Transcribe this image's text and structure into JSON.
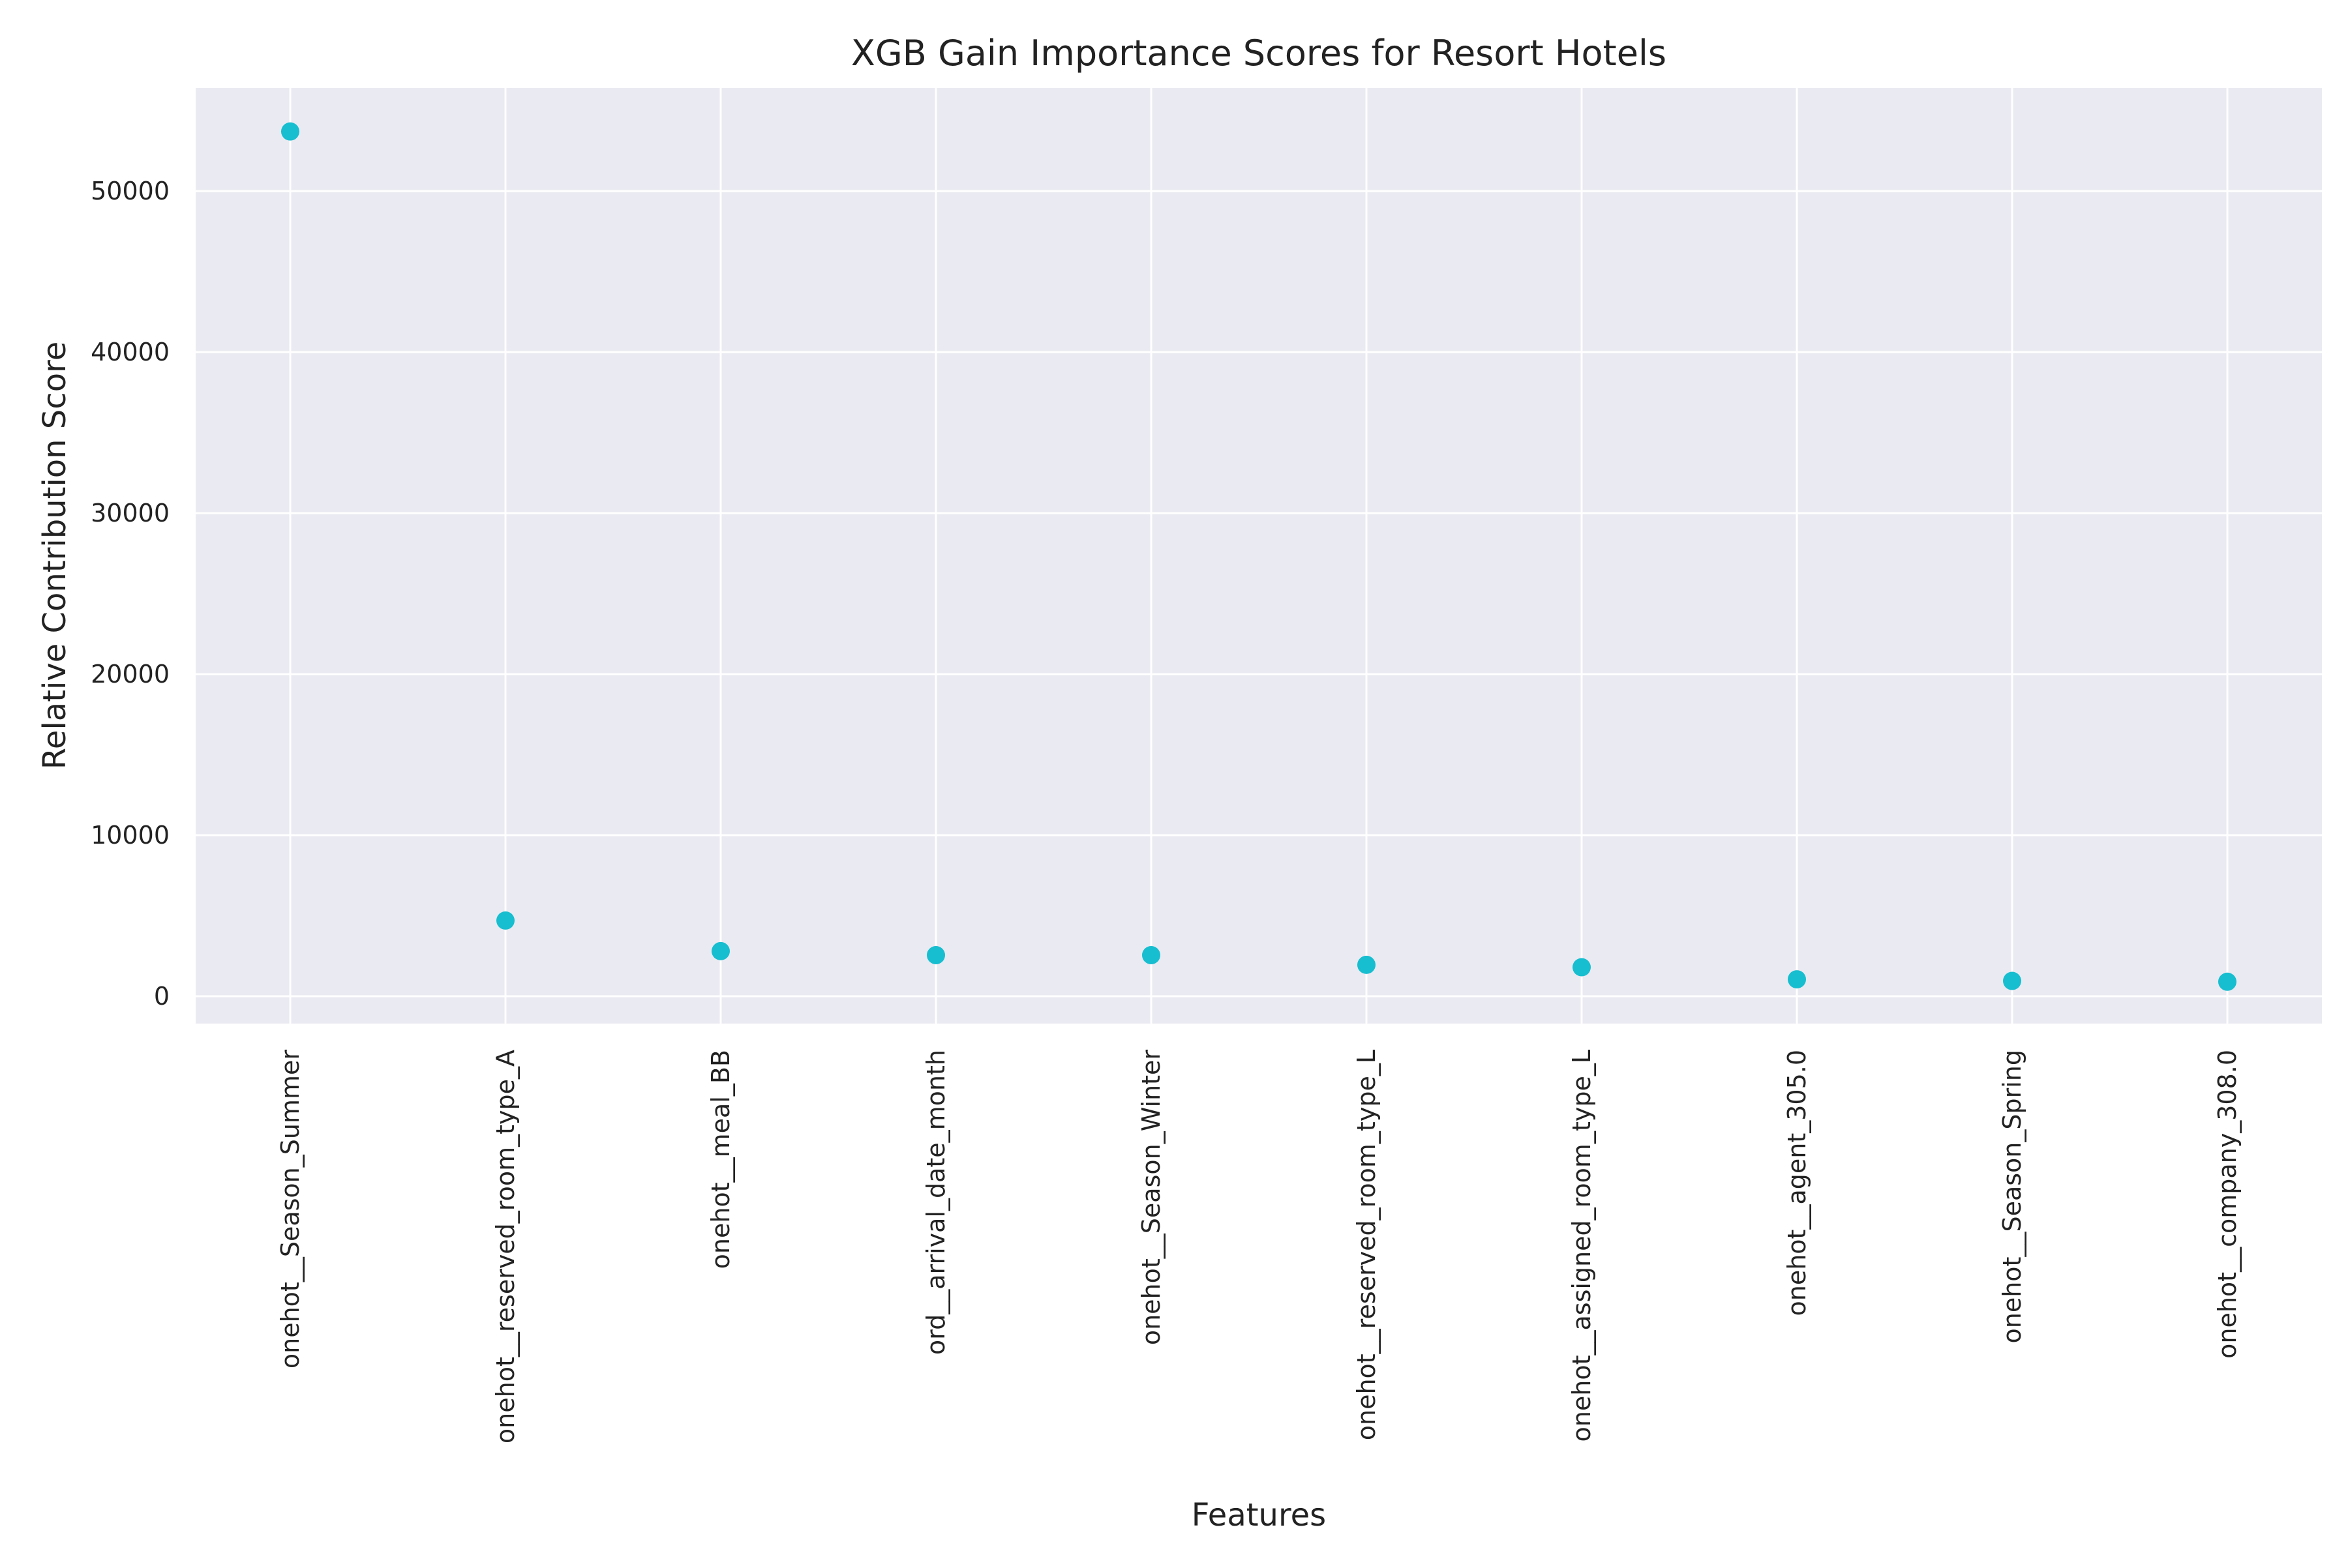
{
  "chart_data": {
    "type": "scatter",
    "title": "XGB Gain Importance Scores for Resort Hotels",
    "xlabel": "Features",
    "ylabel": "Relative Contribution Score",
    "categories": [
      "onehot__Season_Summer",
      "onehot__reserved_room_type_A",
      "onehot__meal_BB",
      "ord__arrival_date_month",
      "onehot__Season_Winter",
      "onehot__reserved_room_type_L",
      "onehot__assigned_room_type_L",
      "onehot__agent_305.0",
      "onehot__Season_Spring",
      "onehot__company_308.0"
    ],
    "values": [
      53700,
      4700,
      2800,
      2550,
      2550,
      1950,
      1800,
      1050,
      950,
      900
    ],
    "yticks": [
      0,
      10000,
      20000,
      30000,
      40000,
      50000
    ],
    "ytick_labels": [
      "0",
      "10000",
      "20000",
      "30000",
      "40000",
      "50000"
    ],
    "ylim": [
      -1700,
      56400
    ],
    "grid": true,
    "legend": "none",
    "colors": {
      "marker": "#17becf",
      "plot_background": "#eaeaf2",
      "grid": "#ffffff"
    }
  }
}
